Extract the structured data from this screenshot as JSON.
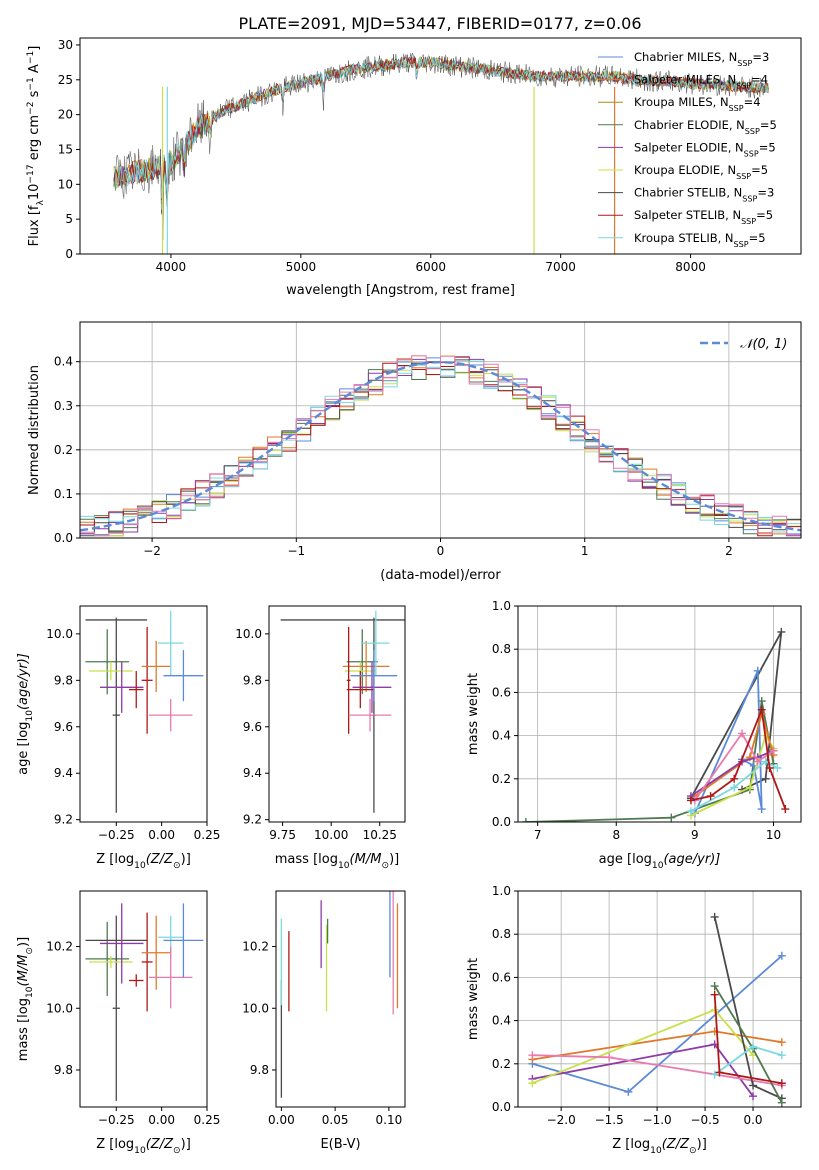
{
  "figure": {
    "title": "PLATE=2091, MJD=53447, FIBERID=0177, z=0.06"
  },
  "chart_data": [
    {
      "id": "spectrum",
      "type": "line",
      "xlabel": "wavelength [Angstrom, rest frame]",
      "ylabel_main": "Flux [f",
      "ylabel_sub": "λ",
      "ylabel_mid": "10",
      "ylabel_exp": "−17",
      "ylabel_rest": " erg cm",
      "ylabel_exp2": "−2",
      "ylabel_rest2": " s",
      "ylabel_exp3": "−1",
      "ylabel_rest3": " A",
      "ylabel_exp4": "−1",
      "ylabel_end": "]",
      "xlim": [
        3300,
        8850
      ],
      "ylim": [
        0,
        31
      ],
      "xticks": [
        4000,
        5000,
        6000,
        7000,
        8000
      ],
      "yticks": [
        0,
        5,
        10,
        15,
        20,
        25,
        30
      ],
      "legend_position": "top-right",
      "grid": false,
      "continuum_x": [
        3560,
        3800,
        4000,
        4200,
        4400,
        4600,
        4800,
        5000,
        5200,
        5400,
        5600,
        5800,
        6000,
        6200,
        6400,
        6600,
        6800,
        7000,
        7200,
        7400,
        7600,
        7800,
        8000,
        8200,
        8400,
        8600
      ],
      "continuum_y": [
        11,
        12,
        13,
        18,
        20.5,
        22,
        23.5,
        24.5,
        25.5,
        26.5,
        27,
        27.5,
        27.5,
        27,
        26.5,
        26,
        25.5,
        25.5,
        25.5,
        25.5,
        25,
        24.8,
        24.5,
        24.3,
        24,
        23.8
      ],
      "absorption_lines": [
        {
          "x": 3934,
          "depth": 14
        },
        {
          "x": 3969,
          "depth": 12
        },
        {
          "x": 4102,
          "depth": 8
        },
        {
          "x": 4305,
          "depth": 6
        },
        {
          "x": 4861,
          "depth": 4
        },
        {
          "x": 5175,
          "depth": 5
        },
        {
          "x": 5893,
          "depth": 4
        }
      ],
      "series": [
        {
          "name_pre": "Chabrier MILES, N",
          "name_sub": "SSP",
          "name_post": "=3",
          "color": "#5b8ad8"
        },
        {
          "name_pre": "Salpeter MILES, N",
          "name_sub": "SSP",
          "name_post": "=4",
          "color": "#e07a2a"
        },
        {
          "name_pre": "Kroupa MILES, N",
          "name_sub": "SSP",
          "name_post": "=4",
          "color": "#b08a1a"
        },
        {
          "name_pre": "Chabrier ELODIE, N",
          "name_sub": "SSP",
          "name_post": "=5",
          "color": "#4f7a4f"
        },
        {
          "name_pre": "Salpeter ELODIE, N",
          "name_sub": "SSP",
          "name_post": "=5",
          "color": "#8e3aa8"
        },
        {
          "name_pre": "Kroupa ELODIE, N",
          "name_sub": "SSP",
          "name_post": "=5",
          "color": "#c8e04a"
        },
        {
          "name_pre": "Chabrier STELIB, N",
          "name_sub": "SSP",
          "name_post": "=3",
          "color": "#4a4a4a"
        },
        {
          "name_pre": "Salpeter STELIB, N",
          "name_sub": "SSP",
          "name_post": "=5",
          "color": "#b01818"
        },
        {
          "name_pre": "Kroupa STELIB, N",
          "name_sub": "SSP",
          "name_post": "=5",
          "color": "#7ad8e0"
        }
      ]
    },
    {
      "id": "residuals",
      "type": "bar",
      "xlabel": "(data-model)/error",
      "ylabel": "Normed distribution",
      "xlim": [
        -2.5,
        2.5
      ],
      "ylim": [
        0,
        0.49
      ],
      "xticks": [
        -2,
        -1,
        0,
        1,
        2
      ],
      "xtick_labels": [
        "−2",
        "−1",
        "0",
        "1",
        "2"
      ],
      "yticks": [
        0.0,
        0.1,
        0.2,
        0.3,
        0.4
      ],
      "ytick_labels": [
        "0.0",
        "0.1",
        "0.2",
        "0.3",
        "0.4"
      ],
      "grid": true,
      "bin_width": 0.1,
      "legend_position": "top-right",
      "legend_label": "𝒩(0, 1)",
      "gaussian_color": "#5b8ad8",
      "series_colors": [
        "#5b8ad8",
        "#e07a2a",
        "#4f7a4f",
        "#8e3aa8",
        "#c8e04a",
        "#4a4a4a",
        "#b01818",
        "#7ad8e0",
        "#e87ab0"
      ]
    },
    {
      "id": "age-vs-Z",
      "type": "scatter",
      "xlabel": "Z [log",
      "xlabel_sub": "10",
      "xlabel_end": "(Z/Z",
      "xlabel_sub2": "⊙",
      "xlabel_tail": ")]",
      "ylabel": "age  [log",
      "ylabel_sub": "10",
      "ylabel_end": "(age/yr)]",
      "xlim": [
        -0.45,
        0.25
      ],
      "ylim": [
        9.19,
        10.12
      ],
      "xticks": [
        -0.25,
        0.0,
        0.25
      ],
      "xtick_labels": [
        "−0.25",
        "0.00",
        "0.25"
      ],
      "yticks": [
        9.2,
        9.4,
        9.6,
        9.8,
        10.0
      ],
      "ytick_labels": [
        "9.2",
        "9.4",
        "9.6",
        "9.8",
        "10.0"
      ],
      "points": [
        {
          "x": -0.3,
          "y": 9.88,
          "xerr": 0.12,
          "yerr": 0.14,
          "color": "#4f7a4f"
        },
        {
          "x": -0.25,
          "y": 10.06,
          "xerr": 0.17,
          "yerr": 0.0,
          "color": "#4a4a4a"
        },
        {
          "x": -0.25,
          "y": 9.65,
          "xerr": 0.02,
          "yerr": 0.42,
          "color": "#4a4a4a"
        },
        {
          "x": -0.28,
          "y": 9.84,
          "xerr": 0.12,
          "yerr": 0.04,
          "color": "#c8e04a"
        },
        {
          "x": -0.22,
          "y": 9.77,
          "xerr": 0.12,
          "yerr": 0.11,
          "color": "#8e3aa8"
        },
        {
          "x": -0.14,
          "y": 9.76,
          "xerr": 0.04,
          "yerr": 0.08,
          "color": "#b01818"
        },
        {
          "x": -0.08,
          "y": 9.8,
          "xerr": 0.03,
          "yerr": 0.23,
          "color": "#b01818"
        },
        {
          "x": -0.03,
          "y": 9.86,
          "xerr": 0.08,
          "yerr": 0.11,
          "color": "#e07a2a"
        },
        {
          "x": 0.05,
          "y": 9.96,
          "xerr": 0.07,
          "yerr": 0.14,
          "color": "#7ad8e0"
        },
        {
          "x": 0.05,
          "y": 9.65,
          "xerr": 0.12,
          "yerr": 0.07,
          "color": "#e87ab0"
        },
        {
          "x": 0.12,
          "y": 9.82,
          "xerr": 0.11,
          "yerr": 0.11,
          "color": "#5b8ad8"
        }
      ]
    },
    {
      "id": "age-vs-mass",
      "type": "scatter",
      "xlabel": "mass [log",
      "xlabel_sub": "10",
      "xlabel_end": "(M/M",
      "xlabel_sub2": "⊙",
      "xlabel_tail": ")]",
      "xlim": [
        9.68,
        10.38
      ],
      "ylim": [
        9.19,
        10.12
      ],
      "xticks": [
        9.75,
        10.0,
        10.25
      ],
      "xtick_labels": [
        "9.75",
        "10.00",
        "10.25"
      ],
      "yticks": [
        9.2,
        9.4,
        9.6,
        9.8,
        10.0
      ],
      "ytick_labels": [
        "9.2",
        "9.4",
        "9.6",
        "9.8",
        "10.0"
      ],
      "points": [
        {
          "x": 10.06,
          "y": 10.06,
          "xerr": 0.32,
          "yerr": 0.0,
          "color": "#4a4a4a"
        },
        {
          "x": 10.22,
          "y": 9.65,
          "xerr": 0.01,
          "yerr": 0.42,
          "color": "#4a4a4a"
        },
        {
          "x": 10.16,
          "y": 9.88,
          "xerr": 0.08,
          "yerr": 0.14,
          "color": "#4f7a4f"
        },
        {
          "x": 10.15,
          "y": 9.84,
          "xerr": 0.08,
          "yerr": 0.04,
          "color": "#c8e04a"
        },
        {
          "x": 10.18,
          "y": 9.86,
          "xerr": 0.12,
          "yerr": 0.11,
          "color": "#e07a2a"
        },
        {
          "x": 10.21,
          "y": 9.77,
          "xerr": 0.1,
          "yerr": 0.11,
          "color": "#8e3aa8"
        },
        {
          "x": 10.09,
          "y": 9.8,
          "xerr": 0.01,
          "yerr": 0.23,
          "color": "#b01818"
        },
        {
          "x": 10.15,
          "y": 9.76,
          "xerr": 0.07,
          "yerr": 0.08,
          "color": "#b01818"
        },
        {
          "x": 10.23,
          "y": 9.96,
          "xerr": 0.07,
          "yerr": 0.14,
          "color": "#7ad8e0"
        },
        {
          "x": 10.2,
          "y": 9.65,
          "xerr": 0.11,
          "yerr": 0.07,
          "color": "#e87ab0"
        },
        {
          "x": 10.22,
          "y": 9.82,
          "xerr": 0.12,
          "yerr": 0.11,
          "color": "#5b8ad8"
        }
      ]
    },
    {
      "id": "weight-vs-age",
      "type": "line",
      "xlabel": "age  [log",
      "xlabel_sub": "10",
      "xlabel_end": "(age/yr)]",
      "ylabel": "mass weight",
      "xlim": [
        6.75,
        10.35
      ],
      "ylim": [
        0,
        1
      ],
      "xticks": [
        7,
        8,
        9,
        10
      ],
      "yticks": [
        0.0,
        0.2,
        0.4,
        0.6,
        0.8,
        1.0
      ],
      "ytick_labels": [
        "0.0",
        "0.2",
        "0.4",
        "0.6",
        "0.8",
        "1.0"
      ],
      "grid": true,
      "series": [
        {
          "color": "#4f7a4f",
          "x": [
            6.85,
            8.7,
            9.7,
            9.85,
            10.0
          ],
          "y": [
            0.0,
            0.02,
            0.15,
            0.56,
            0.27
          ]
        },
        {
          "color": "#4a4a4a",
          "x": [
            8.95,
            10.1,
            9.9,
            9.6
          ],
          "y": [
            0.11,
            0.88,
            0.2,
            0.15
          ]
        },
        {
          "color": "#5b8ad8",
          "x": [
            9.0,
            9.8,
            9.85,
            9.75,
            9.6
          ],
          "y": [
            0.04,
            0.7,
            0.06,
            0.26,
            0.29
          ]
        },
        {
          "color": "#c8e04a",
          "x": [
            8.95,
            9.7,
            9.9,
            10.0
          ],
          "y": [
            0.03,
            0.16,
            0.4,
            0.34
          ]
        },
        {
          "color": "#e07a2a",
          "x": [
            9.0,
            9.7,
            9.85,
            10.0
          ],
          "y": [
            0.12,
            0.3,
            0.5,
            0.31
          ]
        },
        {
          "color": "#8e3aa8",
          "x": [
            8.95,
            9.6,
            9.8,
            10.0
          ],
          "y": [
            0.12,
            0.28,
            0.3,
            0.33
          ]
        },
        {
          "color": "#e87ab0",
          "x": [
            9.0,
            9.6,
            9.8,
            10.0
          ],
          "y": [
            0.1,
            0.41,
            0.28,
            0.33
          ]
        },
        {
          "color": "#7ad8e0",
          "x": [
            8.95,
            9.5,
            9.9,
            10.05
          ],
          "y": [
            0.05,
            0.16,
            0.28,
            0.25
          ]
        },
        {
          "color": "#b01818",
          "x": [
            8.95,
            9.2,
            9.5,
            9.85,
            9.95,
            10.15
          ],
          "y": [
            0.1,
            0.12,
            0.2,
            0.52,
            0.25,
            0.06
          ]
        }
      ]
    },
    {
      "id": "mass-vs-Z",
      "type": "scatter",
      "xlabel": "Z [log",
      "xlabel_sub": "10",
      "xlabel_end": "(Z/Z",
      "xlabel_sub2": "⊙",
      "xlabel_tail": ")]",
      "ylabel": "mass [log",
      "ylabel_sub": "10",
      "ylabel_end": "(M/M",
      "ylabel_sub2": "⊙",
      "ylabel_tail": ")]",
      "xlim": [
        -0.45,
        0.25
      ],
      "ylim": [
        9.68,
        10.38
      ],
      "xticks": [
        -0.25,
        0.0,
        0.25
      ],
      "xtick_labels": [
        "−0.25",
        "0.00",
        "0.25"
      ],
      "yticks": [
        9.8,
        10.0,
        10.2
      ],
      "ytick_labels": [
        "9.8",
        "10.0",
        "10.2"
      ],
      "points": [
        {
          "x": -0.3,
          "y": 10.16,
          "xerr": 0.12,
          "yerr": 0.12,
          "color": "#4f7a4f"
        },
        {
          "x": -0.25,
          "y": 10.22,
          "xerr": 0.17,
          "yerr": 0.0,
          "color": "#4a4a4a"
        },
        {
          "x": -0.25,
          "y": 10.0,
          "xerr": 0.02,
          "yerr": 0.3,
          "color": "#4a4a4a"
        },
        {
          "x": -0.28,
          "y": 10.15,
          "xerr": 0.12,
          "yerr": 0.02,
          "color": "#c8e04a"
        },
        {
          "x": -0.22,
          "y": 10.21,
          "xerr": 0.12,
          "yerr": 0.13,
          "color": "#8e3aa8"
        },
        {
          "x": -0.14,
          "y": 10.09,
          "xerr": 0.04,
          "yerr": 0.02,
          "color": "#b01818"
        },
        {
          "x": -0.08,
          "y": 10.15,
          "xerr": 0.03,
          "yerr": 0.16,
          "color": "#b01818"
        },
        {
          "x": -0.03,
          "y": 10.18,
          "xerr": 0.08,
          "yerr": 0.12,
          "color": "#e07a2a"
        },
        {
          "x": 0.05,
          "y": 10.23,
          "xerr": 0.07,
          "yerr": 0.07,
          "color": "#7ad8e0"
        },
        {
          "x": 0.05,
          "y": 10.1,
          "xerr": 0.12,
          "yerr": 0.1,
          "color": "#e87ab0"
        },
        {
          "x": 0.12,
          "y": 10.22,
          "xerr": 0.11,
          "yerr": 0.12,
          "color": "#5b8ad8"
        }
      ]
    },
    {
      "id": "mass-vs-ebv",
      "type": "scatter",
      "xlabel": "E(B-V)",
      "xlim": [
        -0.005,
        0.115
      ],
      "ylim": [
        9.68,
        10.38
      ],
      "xticks": [
        0.0,
        0.05,
        0.1
      ],
      "xtick_labels": [
        "0.00",
        "0.05",
        "0.10"
      ],
      "yticks": [
        9.8,
        10.0,
        10.2
      ],
      "ytick_labels": [
        "9.8",
        "10.0",
        "10.2"
      ],
      "points": [
        {
          "x": 0.0,
          "y": 9.9,
          "xerr": 0.0,
          "yerr": 0.19,
          "color": "#4a4a4a"
        },
        {
          "x": 0.0,
          "y": 10.15,
          "xerr": 0.0,
          "yerr": 0.14,
          "color": "#7ad8e0"
        },
        {
          "x": 0.007,
          "y": 10.12,
          "xerr": 0.0,
          "yerr": 0.13,
          "color": "#b01818"
        },
        {
          "x": 0.037,
          "y": 10.24,
          "xerr": 0.0,
          "yerr": 0.11,
          "color": "#8e3aa8"
        },
        {
          "x": 0.042,
          "y": 10.13,
          "xerr": 0.0,
          "yerr": 0.14,
          "color": "#c8e04a"
        },
        {
          "x": 0.043,
          "y": 10.25,
          "xerr": 0.0,
          "yerr": 0.04,
          "color": "#4f7a4f"
        },
        {
          "x": 0.101,
          "y": 10.25,
          "xerr": 0.0,
          "yerr": 0.15,
          "color": "#5b8ad8"
        },
        {
          "x": 0.104,
          "y": 10.18,
          "xerr": 0.0,
          "yerr": 0.2,
          "color": "#e87ab0"
        },
        {
          "x": 0.108,
          "y": 10.17,
          "xerr": 0.0,
          "yerr": 0.17,
          "color": "#e07a2a"
        }
      ]
    },
    {
      "id": "weight-vs-Z",
      "type": "line",
      "xlabel": "Z [log",
      "xlabel_sub": "10",
      "xlabel_end": "(Z/Z",
      "xlabel_sub2": "⊙",
      "xlabel_tail": ")]",
      "ylabel": "mass weight",
      "xlim": [
        -2.45,
        0.5
      ],
      "ylim": [
        0,
        1
      ],
      "xticks": [
        -2.0,
        -1.5,
        -1.0,
        -0.5,
        0.0
      ],
      "xtick_labels": [
        "−2.0",
        "−1.5",
        "−1.0",
        "−0.5",
        "0.0"
      ],
      "yticks": [
        0.0,
        0.2,
        0.4,
        0.6,
        0.8,
        1.0
      ],
      "ytick_labels": [
        "0.0",
        "0.2",
        "0.4",
        "0.6",
        "0.8",
        "1.0"
      ],
      "grid": true,
      "series": [
        {
          "color": "#5b8ad8",
          "x": [
            -2.3,
            -1.3,
            0.3
          ],
          "y": [
            0.2,
            0.07,
            0.7
          ]
        },
        {
          "color": "#e07a2a",
          "x": [
            -2.3,
            -0.4,
            0.3
          ],
          "y": [
            0.22,
            0.35,
            0.3
          ]
        },
        {
          "color": "#8e3aa8",
          "x": [
            -2.3,
            -0.4,
            0.0
          ],
          "y": [
            0.13,
            0.29,
            0.05
          ]
        },
        {
          "color": "#c8e04a",
          "x": [
            -2.3,
            -0.4,
            0.0
          ],
          "y": [
            0.11,
            0.45,
            0.24
          ]
        },
        {
          "color": "#e87ab0",
          "x": [
            -2.3,
            -1.5,
            0.3
          ],
          "y": [
            0.24,
            0.23,
            0.1
          ]
        },
        {
          "color": "#4a4a4a",
          "x": [
            -0.4,
            0.0,
            0.3
          ],
          "y": [
            0.88,
            0.1,
            0.04
          ]
        },
        {
          "color": "#4f7a4f",
          "x": [
            -0.4,
            0.0,
            0.3
          ],
          "y": [
            0.56,
            0.27,
            0.02
          ]
        },
        {
          "color": "#7ad8e0",
          "x": [
            -0.4,
            0.0,
            0.3
          ],
          "y": [
            0.15,
            0.28,
            0.24
          ]
        },
        {
          "color": "#b01818",
          "x": [
            -0.4,
            -0.35,
            0.3
          ],
          "y": [
            0.52,
            0.16,
            0.11
          ]
        }
      ]
    }
  ]
}
